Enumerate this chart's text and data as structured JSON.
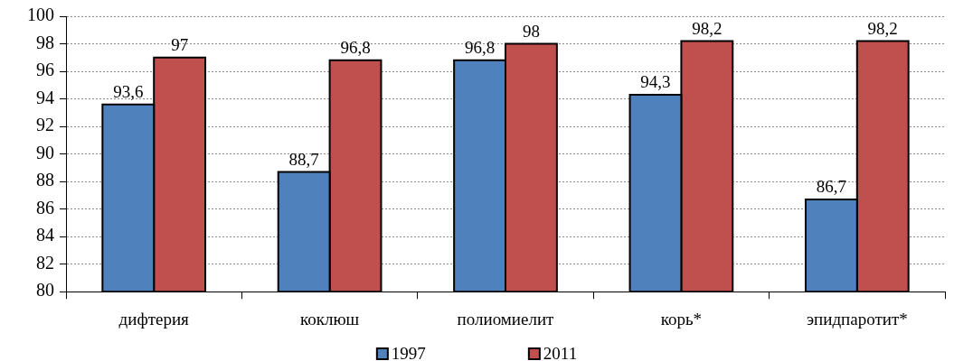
{
  "chart_data": {
    "type": "bar",
    "categories": [
      "дифтерия",
      "коклюш",
      "полиомиелит",
      "корь*",
      "эпидпаротит*"
    ],
    "series": [
      {
        "name": "1997",
        "color": "#4f81bd",
        "values": [
          93.6,
          88.7,
          96.8,
          94.3,
          86.7
        ],
        "value_labels": [
          "93,6",
          "88,7",
          "96,8",
          "94,3",
          "86,7"
        ]
      },
      {
        "name": "2011",
        "color": "#c0504d",
        "values": [
          97,
          96.8,
          98,
          98.2,
          98.2
        ],
        "value_labels": [
          "97",
          "96,8",
          "98",
          "98,2",
          "98,2"
        ]
      }
    ],
    "ylim": [
      80,
      100
    ],
    "yticks": [
      80,
      82,
      84,
      86,
      88,
      90,
      92,
      94,
      96,
      98,
      100
    ],
    "grid": "y",
    "legend": "bottom"
  }
}
